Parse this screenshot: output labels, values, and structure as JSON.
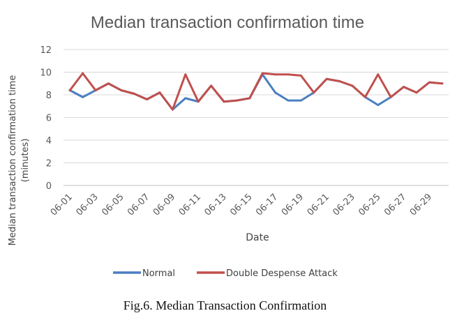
{
  "chart_data": {
    "type": "line",
    "title": "Median transaction confirmation time",
    "xlabel": "Date",
    "ylabel": "Median transaction confirmation time (minutes)",
    "ylim": [
      0,
      12
    ],
    "yticks": [
      0,
      2,
      4,
      6,
      8,
      10,
      12
    ],
    "grid": true,
    "legend_position": "bottom",
    "x": [
      "06-01",
      "06-02",
      "06-03",
      "06-04",
      "06-05",
      "06-06",
      "06-07",
      "06-08",
      "06-09",
      "06-10",
      "06-11",
      "06-12",
      "06-13",
      "06-14",
      "06-15",
      "06-16",
      "06-17",
      "06-18",
      "06-19",
      "06-20",
      "06-21",
      "06-22",
      "06-23",
      "06-24",
      "06-25",
      "06-26",
      "06-27",
      "06-28",
      "06-29",
      "06-30"
    ],
    "xtick_labels": [
      "06-01",
      "06-03",
      "06-05",
      "06-07",
      "06-09",
      "06-11",
      "06-13",
      "06-15",
      "06-17",
      "06-19",
      "06-21",
      "06-23",
      "06-25",
      "06-27",
      "06-29"
    ],
    "series": [
      {
        "name": "Normal",
        "color": "#4a7fc1",
        "values": [
          8.4,
          7.8,
          8.4,
          9.0,
          8.4,
          8.1,
          7.6,
          8.2,
          6.7,
          7.7,
          7.4,
          8.8,
          7.4,
          7.5,
          7.7,
          9.8,
          8.2,
          7.5,
          7.5,
          8.2,
          9.4,
          9.2,
          8.8,
          7.8,
          7.1,
          7.8,
          8.7,
          8.2,
          9.1,
          9.0
        ]
      },
      {
        "name": "Double Despense Attack",
        "color": "#c0504d",
        "values": [
          8.4,
          9.9,
          8.4,
          9.0,
          8.4,
          8.1,
          7.6,
          8.2,
          6.7,
          9.8,
          7.4,
          8.8,
          7.4,
          7.5,
          7.7,
          9.9,
          9.8,
          9.8,
          9.7,
          8.2,
          9.4,
          9.2,
          8.8,
          7.8,
          9.8,
          7.8,
          8.7,
          8.2,
          9.1,
          9.0
        ]
      }
    ]
  },
  "caption": "Fig.6. Median Transaction Confirmation"
}
